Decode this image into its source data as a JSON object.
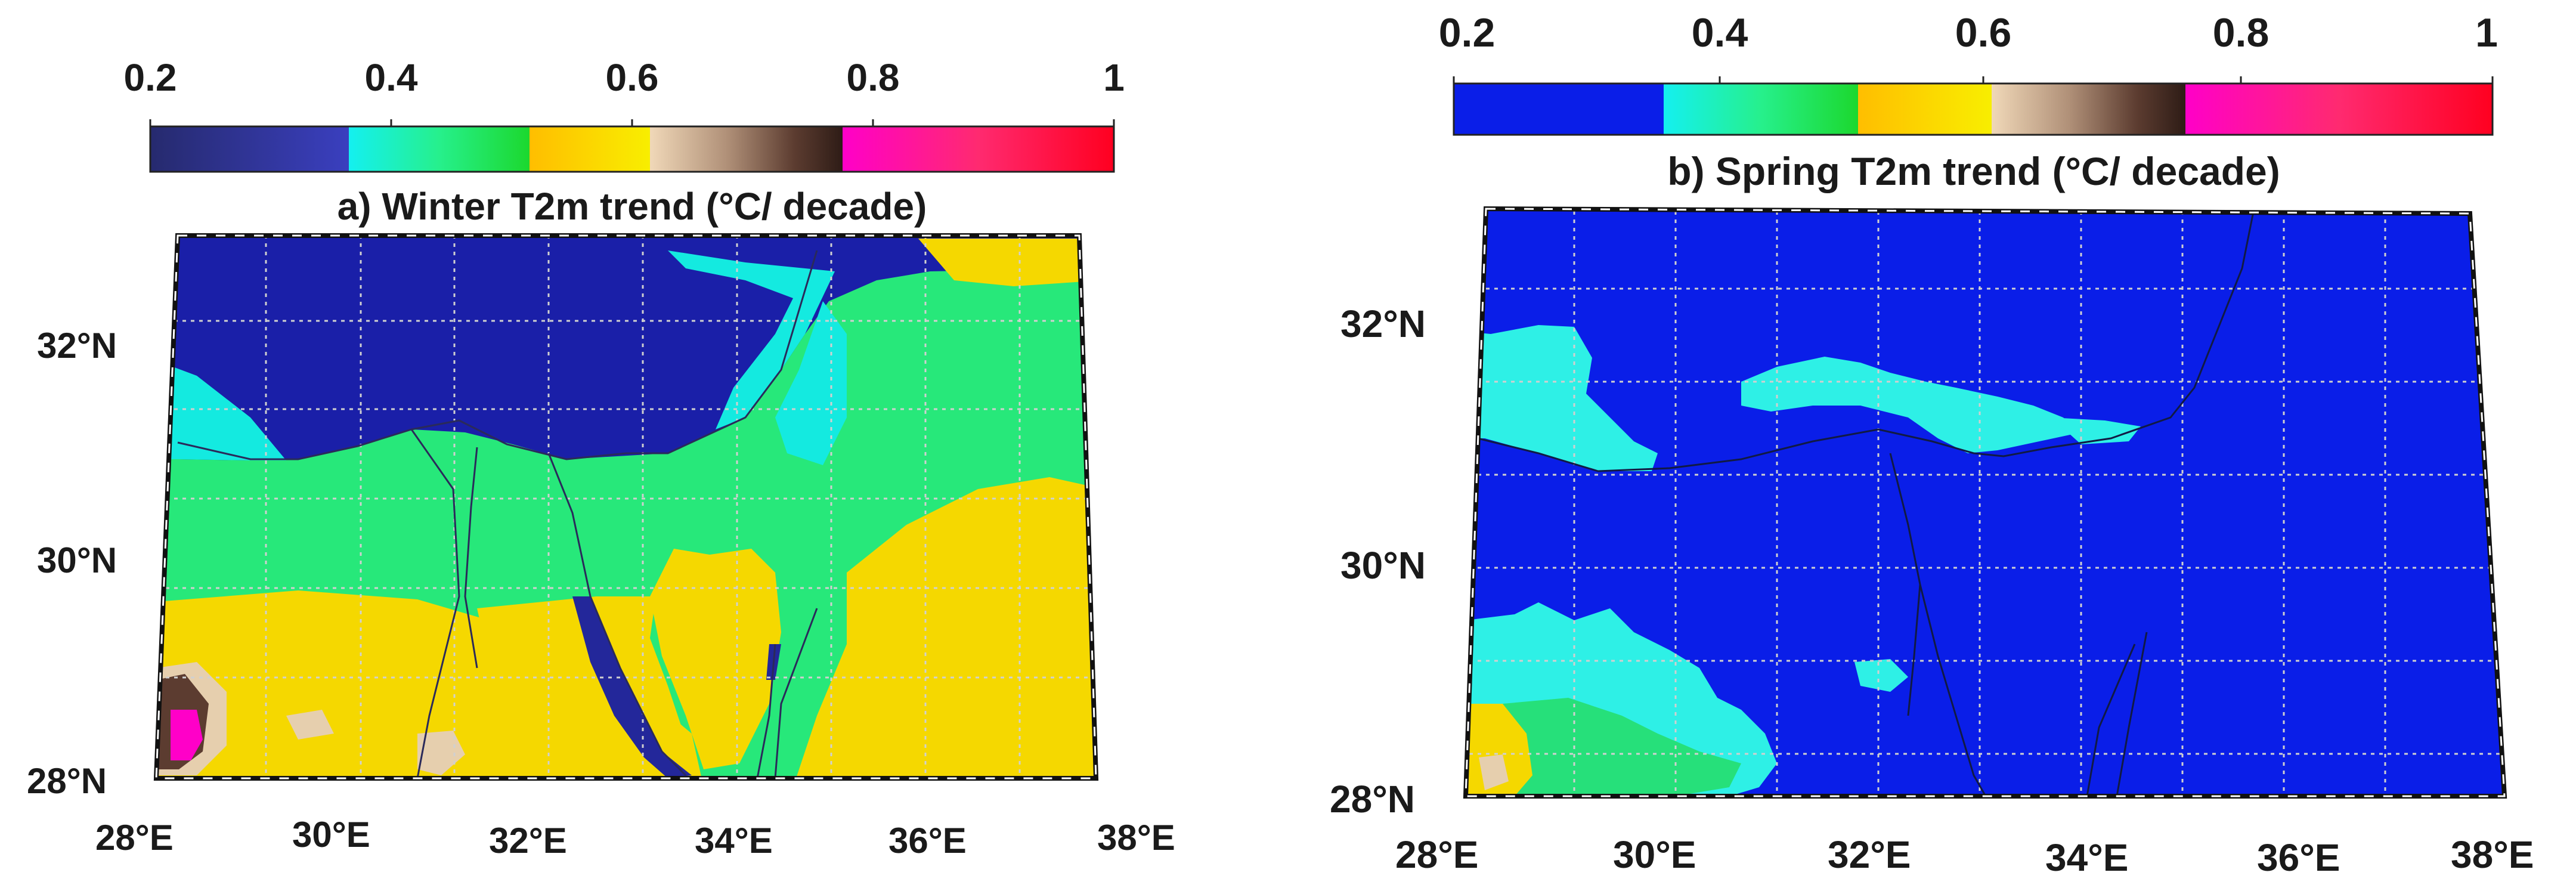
{
  "panels": [
    {
      "id": "a",
      "title": "a) Winter T2m trend (°C/ decade)",
      "colorbar": {
        "ticks": [
          "0.2",
          "0.4",
          "0.6",
          "0.8",
          "1"
        ],
        "tick_values": [
          0.2,
          0.4,
          0.6,
          0.8,
          1.0
        ],
        "range": [
          0.2,
          1.0
        ],
        "segments": [
          {
            "from": 0.2,
            "to": 0.365,
            "colors": [
              "#262a6e",
              "#3a3fbf"
            ]
          },
          {
            "from": 0.365,
            "to": 0.515,
            "colors": [
              "#14f0f0",
              "#26f08c",
              "#1cd82e"
            ]
          },
          {
            "from": 0.515,
            "to": 0.615,
            "colors": [
              "#ffbe00",
              "#f8ee00"
            ]
          },
          {
            "from": 0.615,
            "to": 0.775,
            "colors": [
              "#f0d8b8",
              "#b09078",
              "#5c3c30",
              "#2e1c16"
            ]
          },
          {
            "from": 0.775,
            "to": 1.0,
            "colors": [
              "#ff00c8",
              "#ff2a70",
              "#ff0020"
            ]
          }
        ]
      },
      "lat_labels": [
        "32°N",
        "30°N",
        "28°N"
      ],
      "lat_values": [
        32,
        30,
        28
      ],
      "lon_labels": [
        "28°E",
        "30°E",
        "32°E",
        "34°E",
        "36°E",
        "38°E"
      ],
      "lon_values": [
        28,
        30,
        32,
        34,
        36,
        38
      ],
      "extent": {
        "lon": [
          28,
          38
        ],
        "lat": [
          28,
          33
        ]
      },
      "legend_colors": {
        "low": "#23279a",
        "sea": "#1a1fa8",
        "mid": "#27e87a",
        "cyan": "#14eae0",
        "warm": "#f5d800",
        "hot": "#ff00c8",
        "tan": "#e6cfae"
      }
    },
    {
      "id": "b",
      "title": "b) Spring  T2m trend (°C/ decade)",
      "colorbar": {
        "ticks": [
          "0.2",
          "0.4",
          "0.6",
          "0.8",
          "1"
        ],
        "tick_values": [
          0.2,
          0.4,
          0.6,
          0.8,
          1.0
        ],
        "range": [
          0.2,
          1.0
        ],
        "segments": [
          {
            "from": 0.2,
            "to": 0.375,
            "colors": [
              "#0a1ee8",
              "#0a1ee8"
            ]
          },
          {
            "from": 0.375,
            "to": 0.525,
            "colors": [
              "#14f0f0",
              "#26f08c",
              "#1cd82e"
            ]
          },
          {
            "from": 0.525,
            "to": 0.625,
            "colors": [
              "#ffbe00",
              "#f8ee00"
            ]
          },
          {
            "from": 0.625,
            "to": 0.78,
            "colors": [
              "#f0d8b8",
              "#b09078",
              "#5c3c30",
              "#2e1c16"
            ]
          },
          {
            "from": 0.78,
            "to": 1.0,
            "colors": [
              "#ff00c8",
              "#ff2a70",
              "#ff0020"
            ]
          }
        ]
      },
      "lat_labels": [
        "32°N",
        "30°N",
        "28°N"
      ],
      "lat_values": [
        32,
        30,
        28
      ],
      "lon_labels": [
        "28°E",
        "30°E",
        "32°E",
        "34°E",
        "36°E",
        "38°E"
      ],
      "lon_values": [
        28,
        30,
        32,
        34,
        36,
        38
      ],
      "extent": {
        "lon": [
          28,
          38
        ],
        "lat": [
          28,
          33
        ]
      },
      "legend_colors": {
        "base": "#0a1ee8",
        "cyan": "#2ef0e6",
        "mid": "#26e07a",
        "warm": "#f5d800",
        "tan": "#e6cfae"
      }
    }
  ]
}
